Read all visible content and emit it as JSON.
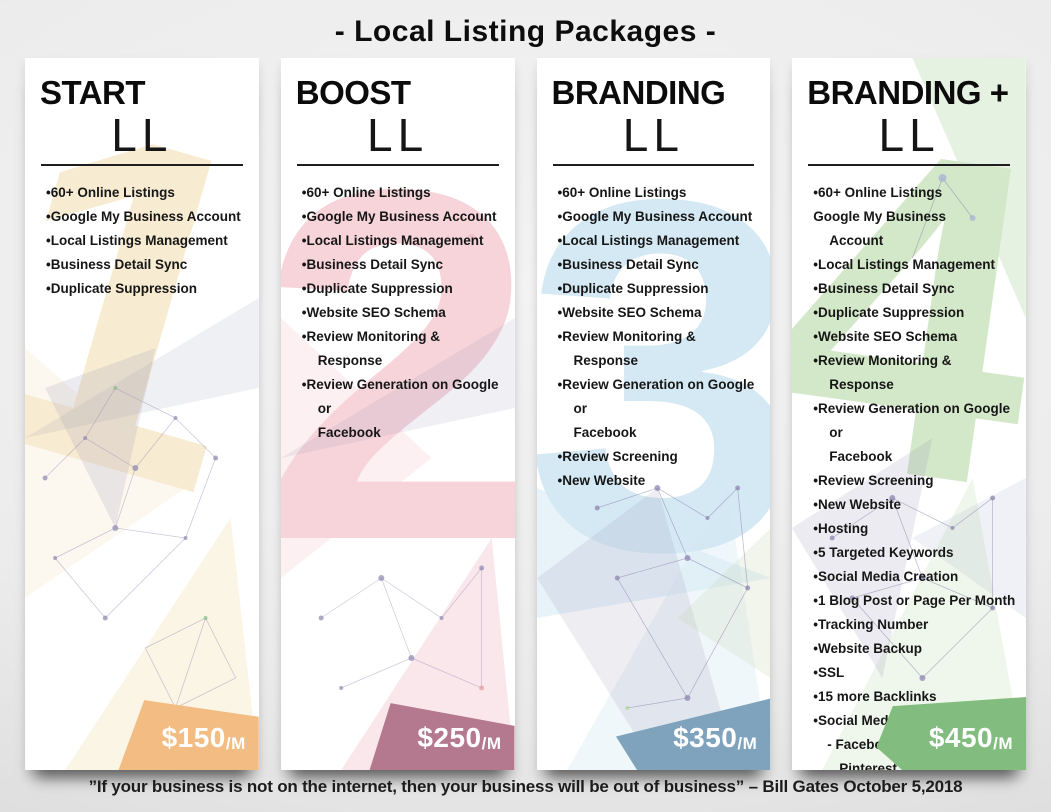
{
  "page": {
    "title": "- Local Listing Packages -",
    "quote": "”If your business is not on the internet, then your business will be out of business” – Bill Gates October 5,2018",
    "background_color": "#ececec"
  },
  "packages": [
    {
      "name": "START",
      "suffix": "LL",
      "number": "1",
      "accent": "#f2bc83",
      "number_color": "#f7ecd2",
      "price": "$150",
      "price_unit": "/M",
      "features": [
        {
          "text": "60+ Online Listings",
          "bullet": true
        },
        {
          "text": "Google My Business Account",
          "bullet": true
        },
        {
          "text": "Local Listings Management",
          "bullet": true
        },
        {
          "text": "Business Detail Sync",
          "bullet": true
        },
        {
          "text": "Duplicate Suppression",
          "bullet": true
        }
      ]
    },
    {
      "name": "BOOST",
      "suffix": "LL",
      "number": "2",
      "accent": "#b5798f",
      "number_color": "#f6d4da",
      "price": "$250",
      "price_unit": "/M",
      "features": [
        {
          "text": "60+ Online Listings",
          "bullet": true
        },
        {
          "text": "Google My Business Account",
          "bullet": true
        },
        {
          "text": "Local Listings Management",
          "bullet": true
        },
        {
          "text": "Business Detail Sync",
          "bullet": true
        },
        {
          "text": "Duplicate Suppression",
          "bullet": true
        },
        {
          "text": "Website SEO Schema",
          "bullet": true
        },
        {
          "text": "Review Monitoring & Response",
          "bullet": true
        },
        {
          "text": "Review Generation on Google or\nFacebook",
          "bullet": true
        }
      ]
    },
    {
      "name": "BRANDING",
      "suffix": "LL",
      "number": "3",
      "accent": "#7fa3bc",
      "number_color": "#d5e9f4",
      "price": "$350",
      "price_unit": "/M",
      "features": [
        {
          "text": "60+ Online Listings",
          "bullet": true
        },
        {
          "text": "Google My Business Account",
          "bullet": true
        },
        {
          "text": "Local Listings Management",
          "bullet": true
        },
        {
          "text": "Business Detail Sync",
          "bullet": true
        },
        {
          "text": "Duplicate Suppression",
          "bullet": true
        },
        {
          "text": "Website SEO Schema",
          "bullet": true
        },
        {
          "text": "Review Monitoring & Response",
          "bullet": true
        },
        {
          "text": "Review Generation on Google or\nFacebook",
          "bullet": true
        },
        {
          "text": "Review Screening",
          "bullet": true
        },
        {
          "text": "New Website",
          "bullet": true
        }
      ]
    },
    {
      "name": "BRANDING +",
      "suffix": "LL",
      "number": "4",
      "accent": "#82bc7e",
      "number_color": "#d2e8c8",
      "price": "$450",
      "price_unit": "/M",
      "features": [
        {
          "text": "60+ Online Listings",
          "bullet": true
        },
        {
          "text": "Google My Business\nAccount",
          "bullet": false
        },
        {
          "text": "Local Listings Management",
          "bullet": true
        },
        {
          "text": "Business Detail Sync",
          "bullet": true
        },
        {
          "text": "Duplicate Suppression",
          "bullet": true
        },
        {
          "text": "Website SEO Schema",
          "bullet": true
        },
        {
          "text": "Review Monitoring & Response",
          "bullet": true
        },
        {
          "text": "Review Generation on Google or\nFacebook",
          "bullet": true
        },
        {
          "text": "Review Screening",
          "bullet": true
        },
        {
          "text": "New Website",
          "bullet": true
        },
        {
          "text": "Hosting",
          "bullet": true
        },
        {
          "text": "5 Targeted Keywords",
          "bullet": true
        },
        {
          "text": "Social Media Creation",
          "bullet": true
        },
        {
          "text": "1 Blog Post or Page Per Month",
          "bullet": true
        },
        {
          "text": "Tracking Number",
          "bullet": true
        },
        {
          "text": "Website Backup",
          "bullet": true
        },
        {
          "text": "SSL",
          "bullet": true
        },
        {
          "text": "15 more Backlinks",
          "bullet": true
        },
        {
          "text": "Social Media Creation",
          "bullet": true
        },
        {
          "text": "- Facebook, Twitter, Pinterest,\nLinkedIn",
          "bullet": false,
          "indent": true
        }
      ]
    }
  ]
}
